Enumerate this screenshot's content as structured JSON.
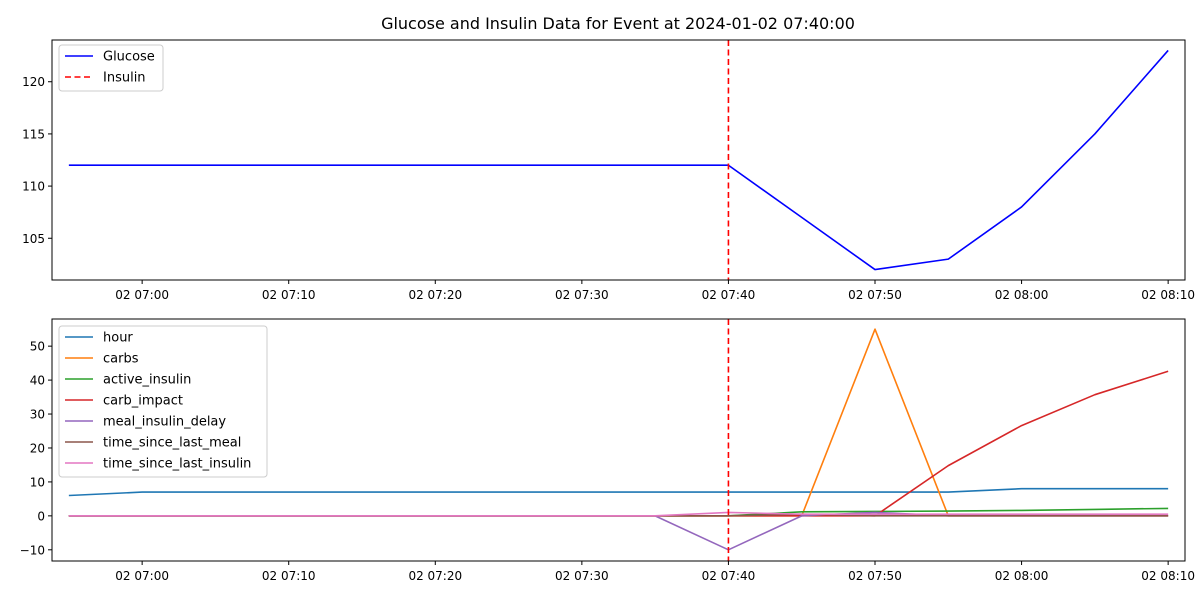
{
  "chart_data": [
    {
      "type": "line",
      "title": "Glucose and Insulin Data for Event at 2024-01-02 07:40:00",
      "xlabel": "",
      "ylabel": "",
      "x": [
        "06:55",
        "07:00",
        "07:05",
        "07:10",
        "07:15",
        "07:20",
        "07:25",
        "07:30",
        "07:35",
        "07:40",
        "07:45",
        "07:50",
        "07:55",
        "08:00",
        "08:05",
        "08:10"
      ],
      "x_ticks": [
        "02 07:00",
        "02 07:10",
        "02 07:20",
        "02 07:30",
        "02 07:40",
        "02 07:50",
        "02 08:00",
        "02 08:10"
      ],
      "y_ticks": [
        "105",
        "110",
        "115",
        "120"
      ],
      "ylim": [
        101,
        124
      ],
      "series": [
        {
          "name": "Glucose",
          "color": "#0000ff",
          "style": "solid",
          "values": [
            112,
            112,
            112,
            112,
            112,
            112,
            112,
            112,
            112,
            112,
            107,
            102,
            103,
            108,
            115,
            123
          ]
        }
      ],
      "vline": {
        "name": "Insulin",
        "x": "07:40",
        "color": "#ff0000",
        "style": "dashed"
      },
      "legend": {
        "placement": "top-left",
        "entries": [
          "Glucose",
          "Insulin"
        ]
      },
      "grid": false
    },
    {
      "type": "line",
      "title": "",
      "xlabel": "",
      "ylabel": "",
      "x": [
        "06:55",
        "07:00",
        "07:05",
        "07:10",
        "07:15",
        "07:20",
        "07:25",
        "07:30",
        "07:35",
        "07:40",
        "07:45",
        "07:50",
        "07:55",
        "08:00",
        "08:05",
        "08:10"
      ],
      "x_ticks": [
        "02 07:00",
        "02 07:10",
        "02 07:20",
        "02 07:30",
        "02 07:40",
        "02 07:50",
        "02 08:00",
        "02 08:10"
      ],
      "y_ticks": [
        "−10",
        "0",
        "10",
        "20",
        "30",
        "40",
        "50"
      ],
      "ylim": [
        -13.3,
        58
      ],
      "series": [
        {
          "name": "hour",
          "color": "#1f77b4",
          "values": [
            6,
            7,
            7,
            7,
            7,
            7,
            7,
            7,
            7,
            7,
            7,
            7,
            7,
            8,
            8,
            8
          ]
        },
        {
          "name": "carbs",
          "color": "#ff7f0e",
          "values": [
            0,
            0,
            0,
            0,
            0,
            0,
            0,
            0,
            0,
            0,
            0,
            55,
            0,
            0,
            0,
            0
          ]
        },
        {
          "name": "active_insulin",
          "color": "#2ca02c",
          "values": [
            0,
            0,
            0,
            0,
            0,
            0,
            0,
            0,
            0,
            0,
            1.2,
            1.3,
            1.4,
            1.6,
            1.9,
            2.2
          ]
        },
        {
          "name": "carb_impact",
          "color": "#d62728",
          "values": [
            0,
            0,
            0,
            0,
            0,
            0,
            0,
            0,
            0,
            0,
            0,
            0,
            14.8,
            26.6,
            35.7,
            42.6
          ]
        },
        {
          "name": "meal_insulin_delay",
          "color": "#9467bd",
          "values": [
            0,
            0,
            0,
            0,
            0,
            0,
            0,
            0,
            0,
            -10,
            0,
            1,
            0,
            0,
            0,
            0
          ]
        },
        {
          "name": "time_since_last_meal",
          "color": "#8c564b",
          "values": [
            0,
            0,
            0,
            0,
            0,
            0,
            0,
            0,
            0,
            0,
            0.5,
            0,
            0,
            0,
            0,
            0
          ]
        },
        {
          "name": "time_since_last_insulin",
          "color": "#e377c2",
          "values": [
            0,
            0,
            0,
            0,
            0,
            0,
            0,
            0,
            0,
            1,
            0.5,
            0.5,
            0.5,
            0.5,
            0.5,
            0.5
          ]
        }
      ],
      "vline": {
        "name": "",
        "x": "07:40",
        "color": "#ff0000",
        "style": "dashed"
      },
      "legend": {
        "placement": "top-left",
        "entries": [
          "hour",
          "carbs",
          "active_insulin",
          "carb_impact",
          "meal_insulin_delay",
          "time_since_last_meal",
          "time_since_last_insulin"
        ]
      },
      "grid": false
    }
  ]
}
